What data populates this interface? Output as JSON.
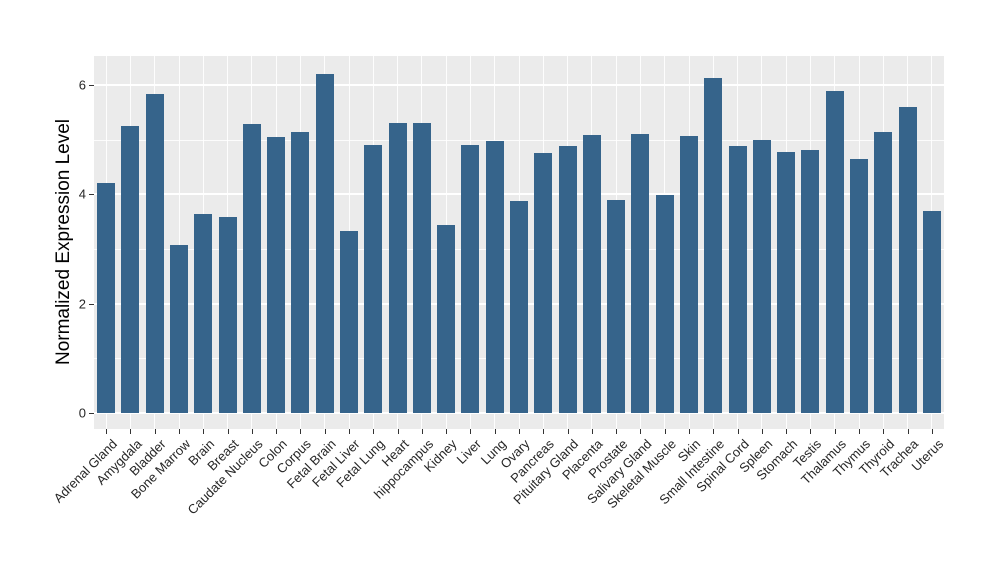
{
  "chart_data": {
    "type": "bar",
    "title": "",
    "xlabel": "",
    "ylabel": "Normalized Expression Level",
    "ylim": [
      0,
      6.5
    ],
    "yticks": [
      0,
      2,
      4,
      6
    ],
    "yticks_minor": [
      1,
      3,
      5
    ],
    "grid": "on",
    "legend": "none",
    "panel_bg": "#EBEBEB",
    "grid_color": "#FFFFFF",
    "bar_color": "#36648B",
    "categories": [
      "Adrenal Gland",
      "Amygdala",
      "Bladder",
      "Bone Marrow",
      "Brain",
      "Breast",
      "Caudate Nucleus",
      "Colon",
      "Corpus",
      "Fetal Brain",
      "Fetal Liver",
      "Fetal Lung",
      "Heart",
      "hippocampus",
      "Kidney",
      "Liver",
      "Lung",
      "Ovary",
      "Pancreas",
      "Pituitary Gland",
      "Placenta",
      "Prostate",
      "Salivary Gland",
      "Skeletal Muscle",
      "Skin",
      "Small Intestine",
      "Spinal Cord",
      "Spleen",
      "Stomach",
      "Testis",
      "Thalamus",
      "Thymus",
      "Thyroid",
      "Trachea",
      "Uterus"
    ],
    "values": [
      4.2,
      5.24,
      5.83,
      3.08,
      3.63,
      3.58,
      5.28,
      5.04,
      5.13,
      6.2,
      3.33,
      4.9,
      5.3,
      5.3,
      3.44,
      4.9,
      4.97,
      3.87,
      4.75,
      4.88,
      5.09,
      3.89,
      5.1,
      3.98,
      5.07,
      6.13,
      4.89,
      4.99,
      4.77,
      4.81,
      5.89,
      4.64,
      5.13,
      5.59,
      3.7
    ]
  }
}
